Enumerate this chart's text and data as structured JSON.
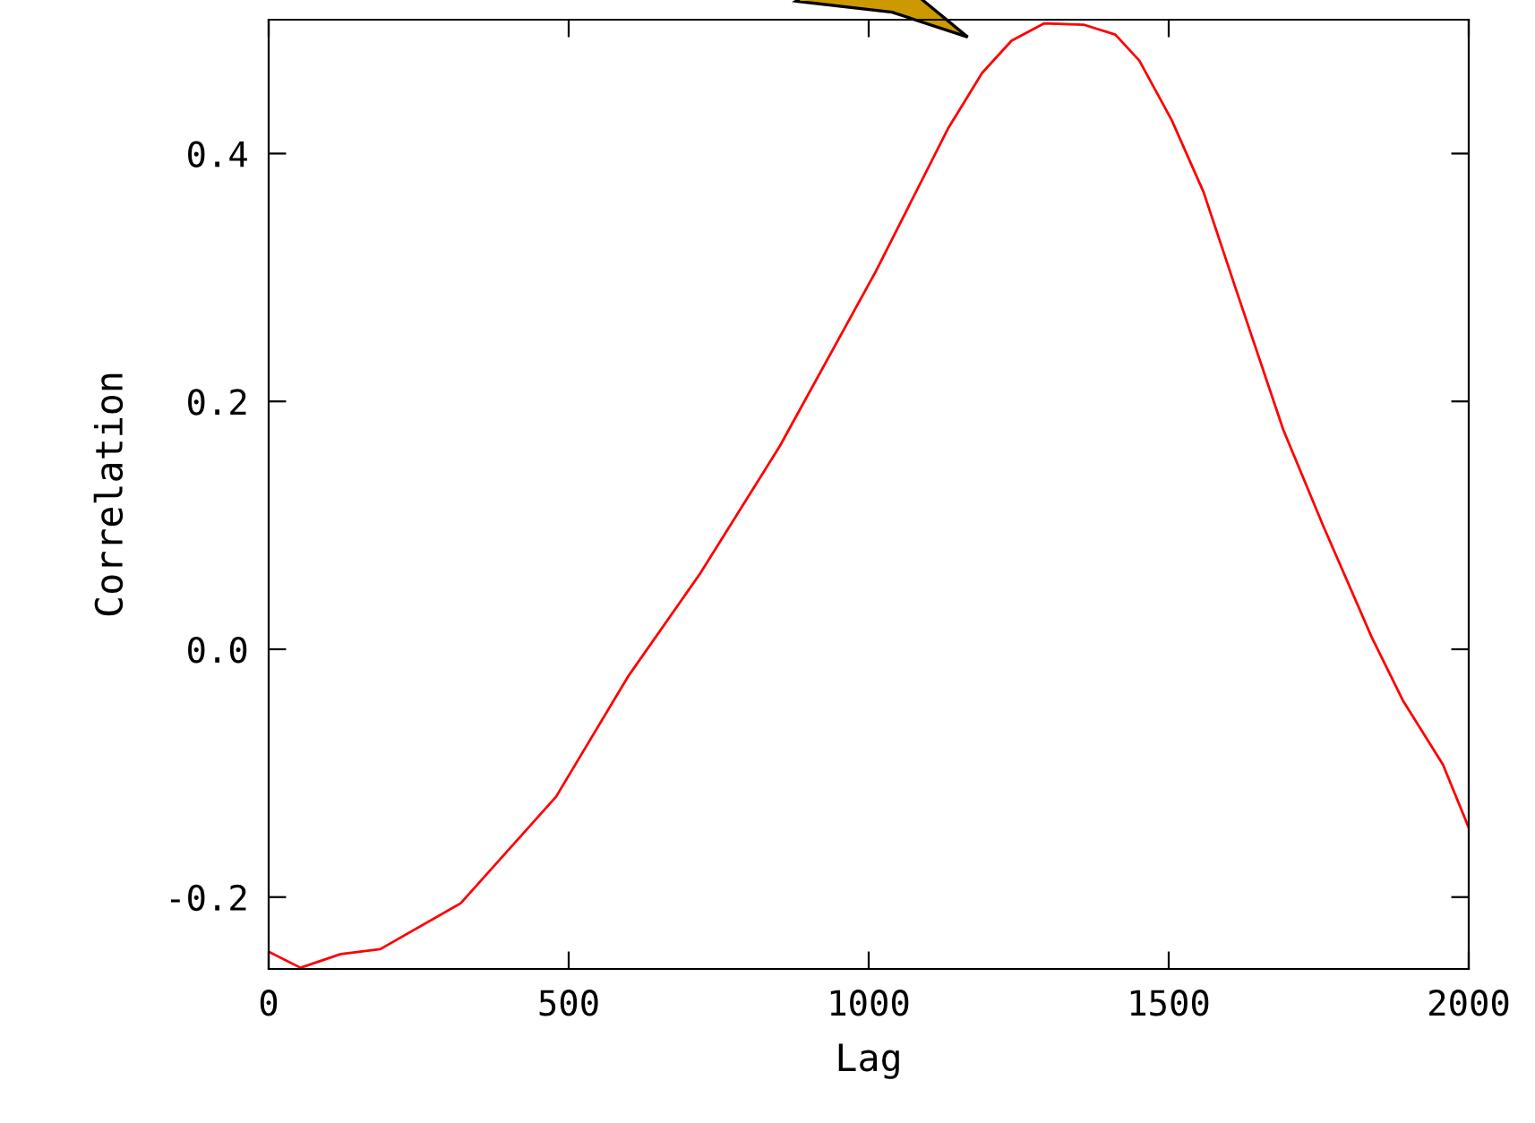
{
  "chart_data": {
    "type": "line",
    "xlabel": "Lag",
    "ylabel": "Correlation",
    "x": [
      0,
      53,
      120,
      186,
      320,
      479,
      599,
      719,
      852,
      1012,
      1132,
      1189,
      1238,
      1292,
      1358,
      1411,
      1451,
      1505,
      1558,
      1611,
      1691,
      1758,
      1838,
      1891,
      1957,
      2000
    ],
    "series": [
      {
        "color": "#ff0000",
        "values": [
          -0.244,
          -0.257,
          -0.246,
          -0.242,
          -0.205,
          -0.119,
          -0.022,
          0.061,
          0.164,
          0.305,
          0.42,
          0.465,
          0.491,
          0.505,
          0.504,
          0.496,
          0.475,
          0.427,
          0.369,
          0.292,
          0.177,
          0.099,
          0.01,
          -0.042,
          -0.093,
          -0.144
        ]
      }
    ],
    "xlim": [
      0,
      2000
    ],
    "ylim": [
      -0.258,
      0.508
    ],
    "xticks": [
      0,
      500,
      1000,
      1500,
      2000
    ],
    "yticks": [
      {
        "value": -0.2,
        "label": "-0.2"
      },
      {
        "value": 0.0,
        "label": "0.0"
      },
      {
        "value": 0.2,
        "label": "0.2"
      },
      {
        "value": 0.4,
        "label": "0.4"
      }
    ],
    "grid": false,
    "legend": false,
    "marker": "none",
    "line_style": "solid"
  }
}
